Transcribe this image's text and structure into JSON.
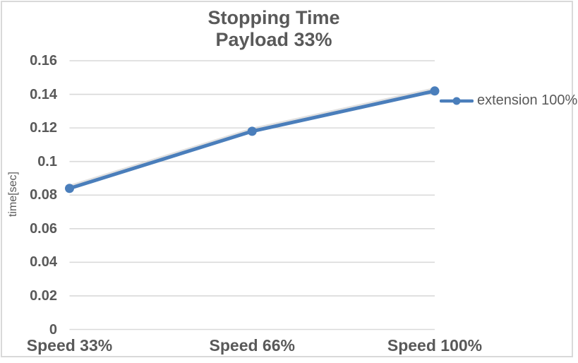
{
  "chart": {
    "title_lines": [
      "Stopping Time",
      "Payload 33%"
    ],
    "y_axis_title": "time[sec]",
    "legend_label": "extension 100%",
    "colors": {
      "series": "#4a7ebb",
      "grid": "#d9d9d9",
      "border": "#d9d9d9",
      "text": "#595959",
      "background": "#ffffff"
    }
  },
  "chart_data": {
    "type": "line",
    "title": "Stopping Time",
    "subtitle": "Payload 33%",
    "categories": [
      "Speed 33%",
      "Speed 66%",
      "Speed 100%"
    ],
    "series": [
      {
        "name": "extension 100%",
        "values": [
          0.084,
          0.118,
          0.142
        ],
        "color": "#4a7ebb",
        "marker": "circle"
      }
    ],
    "xlabel": "",
    "ylabel": "time[sec]",
    "ylim": [
      0,
      0.16
    ],
    "ytick_labels": [
      "0",
      "0.02",
      "0.04",
      "0.06",
      "0.08",
      "0.1",
      "0.12",
      "0.14",
      "0.16"
    ],
    "grid": true,
    "legend_position": "right"
  }
}
